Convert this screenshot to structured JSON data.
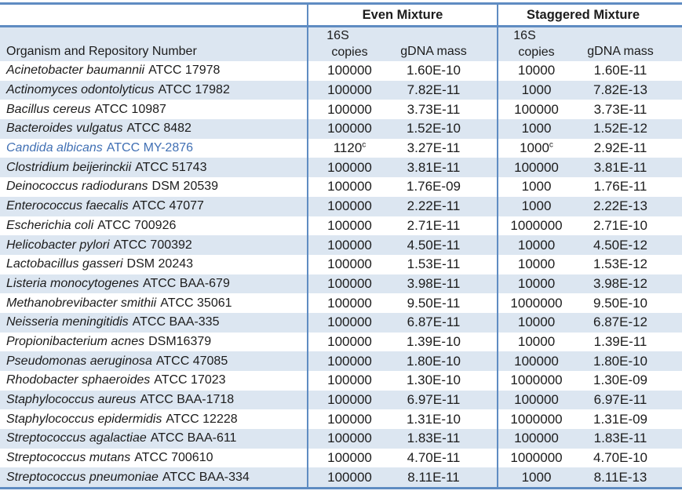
{
  "table": {
    "columns": {
      "organism_header": "Organism and Repository Number",
      "group_headers": [
        "Even Mixture",
        "Staggered Mixture"
      ],
      "subcol_line1": "16S",
      "subcol_copies": "copies",
      "subcol_gdna": "gDNA mass"
    },
    "rows": [
      {
        "organism": "Acinetobacter baumannii",
        "repository": "ATCC 17978",
        "even_copies": "100000",
        "even_gdna": "1.60E-10",
        "stag_copies": "10000",
        "stag_gdna": "1.60E-11"
      },
      {
        "organism": "Actinomyces odontolyticus",
        "repository": "ATCC 17982",
        "even_copies": "100000",
        "even_gdna": "7.82E-11",
        "stag_copies": "1000",
        "stag_gdna": "7.82E-13"
      },
      {
        "organism": "Bacillus cereus",
        "repository": "ATCC 10987",
        "even_copies": "100000",
        "even_gdna": "3.73E-11",
        "stag_copies": "100000",
        "stag_gdna": "3.73E-11"
      },
      {
        "organism": "Bacteroides vulgatus",
        "repository": "ATCC 8482",
        "even_copies": "100000",
        "even_gdna": "1.52E-10",
        "stag_copies": "1000",
        "stag_gdna": "1.52E-12"
      },
      {
        "organism": "Candida albicans",
        "repository": "ATCC MY-2876",
        "even_copies": "1120",
        "even_copies_sup": "c",
        "even_gdna": "3.27E-11",
        "stag_copies": "1000",
        "stag_copies_sup": "c",
        "stag_gdna": "2.92E-11",
        "highlight": true
      },
      {
        "organism": "Clostridium beijerinckii",
        "repository": "ATCC 51743",
        "even_copies": "100000",
        "even_gdna": "3.81E-11",
        "stag_copies": "100000",
        "stag_gdna": "3.81E-11"
      },
      {
        "organism": "Deinococcus radiodurans",
        "repository": "DSM 20539",
        "even_copies": "100000",
        "even_gdna": "1.76E-09",
        "stag_copies": "1000",
        "stag_gdna": "1.76E-11"
      },
      {
        "organism": "Enterococcus faecalis",
        "repository": "ATCC 47077",
        "even_copies": "100000",
        "even_gdna": "2.22E-11",
        "stag_copies": "1000",
        "stag_gdna": "2.22E-13"
      },
      {
        "organism": "Escherichia coli",
        "repository": "ATCC 700926",
        "even_copies": "100000",
        "even_gdna": "2.71E-11",
        "stag_copies": "1000000",
        "stag_gdna": "2.71E-10"
      },
      {
        "organism": "Helicobacter pylori",
        "repository": "ATCC 700392",
        "even_copies": "100000",
        "even_gdna": "4.50E-11",
        "stag_copies": "10000",
        "stag_gdna": "4.50E-12"
      },
      {
        "organism": "Lactobacillus gasseri",
        "repository": "DSM 20243",
        "even_copies": "100000",
        "even_gdna": "1.53E-11",
        "stag_copies": "10000",
        "stag_gdna": "1.53E-12"
      },
      {
        "organism": "Listeria monocytogenes",
        "repository": "ATCC BAA-679",
        "even_copies": "100000",
        "even_gdna": "3.98E-11",
        "stag_copies": "10000",
        "stag_gdna": "3.98E-12"
      },
      {
        "organism": "Methanobrevibacter smithii",
        "repository": "ATCC 35061",
        "even_copies": "100000",
        "even_gdna": "9.50E-11",
        "stag_copies": "1000000",
        "stag_gdna": "9.50E-10"
      },
      {
        "organism": "Neisseria meningitidis",
        "repository": "ATCC BAA-335",
        "even_copies": "100000",
        "even_gdna": "6.87E-11",
        "stag_copies": "10000",
        "stag_gdna": "6.87E-12"
      },
      {
        "organism": "Propionibacterium acnes",
        "repository": "DSM16379",
        "even_copies": "100000",
        "even_gdna": "1.39E-10",
        "stag_copies": "10000",
        "stag_gdna": "1.39E-11"
      },
      {
        "organism": "Pseudomonas aeruginosa",
        "repository": "ATCC 47085",
        "even_copies": "100000",
        "even_gdna": "1.80E-10",
        "stag_copies": "100000",
        "stag_gdna": "1.80E-10"
      },
      {
        "organism": "Rhodobacter sphaeroides",
        "repository": "ATCC 17023",
        "even_copies": "100000",
        "even_gdna": "1.30E-10",
        "stag_copies": "1000000",
        "stag_gdna": "1.30E-09"
      },
      {
        "organism": "Staphylococcus aureus",
        "repository": "ATCC BAA-1718",
        "even_copies": "100000",
        "even_gdna": "6.97E-11",
        "stag_copies": "100000",
        "stag_gdna": "6.97E-11"
      },
      {
        "organism": "Staphylococcus epidermidis",
        "repository": "ATCC 12228",
        "even_copies": "100000",
        "even_gdna": "1.31E-10",
        "stag_copies": "1000000",
        "stag_gdna": "1.31E-09"
      },
      {
        "organism": "Streptococcus agalactiae",
        "repository": "ATCC BAA-611",
        "even_copies": "100000",
        "even_gdna": "1.83E-11",
        "stag_copies": "100000",
        "stag_gdna": "1.83E-11"
      },
      {
        "organism": "Streptococcus mutans",
        "repository": "ATCC 700610",
        "even_copies": "100000",
        "even_gdna": "4.70E-11",
        "stag_copies": "1000000",
        "stag_gdna": "4.70E-10"
      },
      {
        "organism": "Streptococcus pneumoniae",
        "repository": "ATCC BAA-334",
        "even_copies": "100000",
        "even_gdna": "8.11E-11",
        "stag_copies": "1000",
        "stag_gdna": "8.11E-13"
      }
    ]
  },
  "colors": {
    "stripe": "#dce6f1",
    "line": "#5f8cc2",
    "text": "#1c1c1c",
    "highlight_text": "#4170b4"
  }
}
